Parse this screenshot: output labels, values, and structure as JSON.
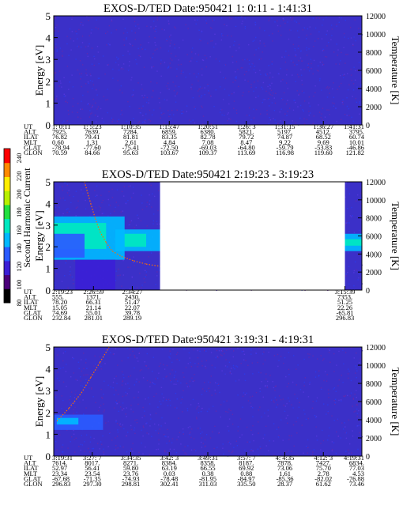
{
  "colorbar": {
    "label": "Second Harmonic Current",
    "ticks": [
      "240",
      "220",
      "200",
      "180",
      "160",
      "140",
      "120",
      "100",
      "80"
    ],
    "colors": [
      "#000000",
      "#4b007a",
      "#3b1fd6",
      "#2a5bff",
      "#00b8ff",
      "#00e8c0",
      "#22e040",
      "#b8f000",
      "#ffee00",
      "#ff8a00",
      "#ff0000"
    ]
  },
  "chart_data": [
    {
      "type": "heatmap",
      "title": "EXOS-D/TED   Date:950421   1: 0:11 - 1:41:31",
      "ylabel": "Energy [eV]",
      "y2label": "Temperature [K]",
      "yticks": [
        "0",
        "1",
        "2",
        "3",
        "4",
        "5"
      ],
      "y2ticks": [
        "0",
        "2000",
        "4000",
        "6000",
        "8000",
        "10000",
        "12000"
      ],
      "ylim": [
        0,
        5
      ],
      "y2lim": [
        0,
        12000
      ],
      "gaps": [],
      "patches": [],
      "trace": [],
      "table": {
        "rows": [
          "UT",
          "ALT",
          "ILAT",
          "MLT",
          "GLAT",
          "GLON"
        ],
        "columns": [
          [
            "1: 0:11",
            "7925.",
            "76.82",
            "0.60",
            "-78.94",
            "70.59"
          ],
          [
            "1: 5:23",
            "7639.",
            "79.41",
            "1.31",
            "-77.60",
            "84.66"
          ],
          [
            "1:10:35",
            "7284.",
            "81.81",
            "2.61",
            "-75.41",
            "95.63"
          ],
          [
            "1:15:47",
            "6859.",
            "83.35",
            "4.84",
            "-72.50",
            "103.67"
          ],
          [
            "1:20:51",
            "6380.",
            "82.78",
            "7.08",
            "-69.03",
            "109.37"
          ],
          [
            "1:26: 3",
            "5821.",
            "79.72",
            "8.47",
            "-64.80",
            "113.69"
          ],
          [
            "1:31:15",
            "5197.",
            "74.87",
            "9.22",
            "-59.79",
            "116.98"
          ],
          [
            "1:36:27",
            "4512.",
            "68.52",
            "9.69",
            "-53.83",
            "119.60"
          ],
          [
            "1:41:31",
            "3795.",
            "60.74",
            "10.01",
            "-46.86",
            "121.82"
          ]
        ]
      }
    },
    {
      "type": "heatmap",
      "title": "EXOS-D/TED   Date:950421   2:19:23 - 3:19:23",
      "ylabel": "Energy [eV]",
      "y2label": "Temperature [K]",
      "yticks": [
        "0",
        "1",
        "2",
        "3",
        "4",
        "5"
      ],
      "y2ticks": [
        "0",
        "2000",
        "4000",
        "6000",
        "8000",
        "10000",
        "12000"
      ],
      "ylim": [
        0,
        5
      ],
      "y2lim": [
        0,
        12000
      ],
      "gaps": [
        [
          0.345,
          0.945
        ]
      ],
      "patches": [
        {
          "x0": 0.0,
          "x1": 0.23,
          "y0": 1.4,
          "y1": 3.4,
          "color": "#00b8ff"
        },
        {
          "x0": 0.0,
          "x1": 0.17,
          "y0": 1.9,
          "y1": 3.1,
          "color": "#00e8c0"
        },
        {
          "x0": 0.0,
          "x1": 0.1,
          "y0": 1.5,
          "y1": 2.6,
          "color": "#2a5bff"
        },
        {
          "x0": 0.2,
          "x1": 0.345,
          "y0": 1.8,
          "y1": 2.8,
          "color": "#00b8ff"
        },
        {
          "x0": 0.23,
          "x1": 0.3,
          "y0": 2.0,
          "y1": 2.6,
          "color": "#00e8c0"
        },
        {
          "x0": 0.07,
          "x1": 0.2,
          "y0": 0.0,
          "y1": 1.4,
          "color": "#3b1fd6"
        },
        {
          "x0": 0.945,
          "x1": 1.0,
          "y0": 1.8,
          "y1": 2.6,
          "color": "#00b8ff"
        },
        {
          "x0": 0.945,
          "x1": 1.0,
          "y0": 2.05,
          "y1": 2.35,
          "color": "#00e8c0"
        }
      ],
      "trace": [
        [
          0.1,
          5.0
        ],
        [
          0.12,
          4.0
        ],
        [
          0.135,
          3.3
        ],
        [
          0.15,
          2.7
        ],
        [
          0.17,
          2.2
        ],
        [
          0.19,
          1.8
        ],
        [
          0.22,
          1.55
        ],
        [
          0.26,
          1.35
        ],
        [
          0.3,
          1.2
        ],
        [
          0.345,
          1.1
        ]
      ],
      "table": {
        "rows": [
          "UT",
          "ALT",
          "ILAT",
          "MLT",
          "GLAT",
          "GLON"
        ],
        "columns": [
          [
            "2:19:23",
            "555.",
            "78.20",
            "15.05",
            "74.69",
            "232.84"
          ],
          [
            "2:26:59",
            "1371.",
            "66.31",
            "21.14",
            "55.01",
            "281.01"
          ],
          [
            "2:34:27",
            "2430.",
            "51.47",
            "22.07",
            "39.78",
            "289.19"
          ],
          [
            "3:15:39",
            "7353.",
            "51.25",
            "22.26",
            "-65.81",
            "296.83"
          ]
        ],
        "column_pos": [
          0.0,
          0.129,
          0.255,
          0.945
        ]
      }
    },
    {
      "type": "heatmap",
      "title": "EXOS-D/TED   Date:950421   3:19:31 - 4:19:31",
      "ylabel": "Energy [eV]",
      "y2label": "Temperature [K]",
      "yticks": [
        "0",
        "1",
        "2",
        "3",
        "4",
        "5"
      ],
      "y2ticks": [
        "0",
        "2000",
        "4000",
        "6000",
        "8000",
        "10000",
        "12000"
      ],
      "ylim": [
        0,
        5
      ],
      "y2lim": [
        0,
        12000
      ],
      "gaps": [],
      "patches": [
        {
          "x0": 0.0,
          "x1": 0.16,
          "y0": 1.2,
          "y1": 1.9,
          "color": "#2a5bff"
        },
        {
          "x0": 0.01,
          "x1": 0.08,
          "y0": 1.45,
          "y1": 1.75,
          "color": "#00b8ff"
        }
      ],
      "trace": [
        [
          0.01,
          1.6
        ],
        [
          0.05,
          2.2
        ],
        [
          0.09,
          2.9
        ],
        [
          0.12,
          3.6
        ],
        [
          0.15,
          4.3
        ],
        [
          0.18,
          5.0
        ]
      ],
      "table": {
        "rows": [
          "UT",
          "ALT",
          "ILAT",
          "MLT",
          "GLAT",
          "GLON"
        ],
        "columns": [
          [
            "3:19:31",
            "7614.",
            "52.97",
            "23.34",
            "-67.68",
            "296.83"
          ],
          [
            "3:27: 7",
            "8017.",
            "56.41",
            "23.54",
            "-71.35",
            "297.30"
          ],
          [
            "3:34:35",
            "8271.",
            "59.80",
            "23.76",
            "-74.93",
            "298.81"
          ],
          [
            "3:42: 3",
            "8384.",
            "63.19",
            "0.03",
            "-78.48",
            "302.41"
          ],
          [
            "3:49:31",
            "8358.",
            "66.55",
            "0.38",
            "-81.95",
            "311.03"
          ],
          [
            "3:57: 7",
            "8187.",
            "69.92",
            "0.88",
            "-84.97",
            "335.50"
          ],
          [
            "4: 4:35",
            "7878.",
            "73.06",
            "1.61",
            "-85.36",
            "28.37"
          ],
          [
            "4:12: 3",
            "7427.",
            "75.70",
            "2.78",
            "-82.02",
            "61.62"
          ],
          [
            "4:19:31",
            "6834.",
            "77.03",
            "4.53",
            "-76.88",
            "73.46"
          ]
        ]
      }
    }
  ]
}
